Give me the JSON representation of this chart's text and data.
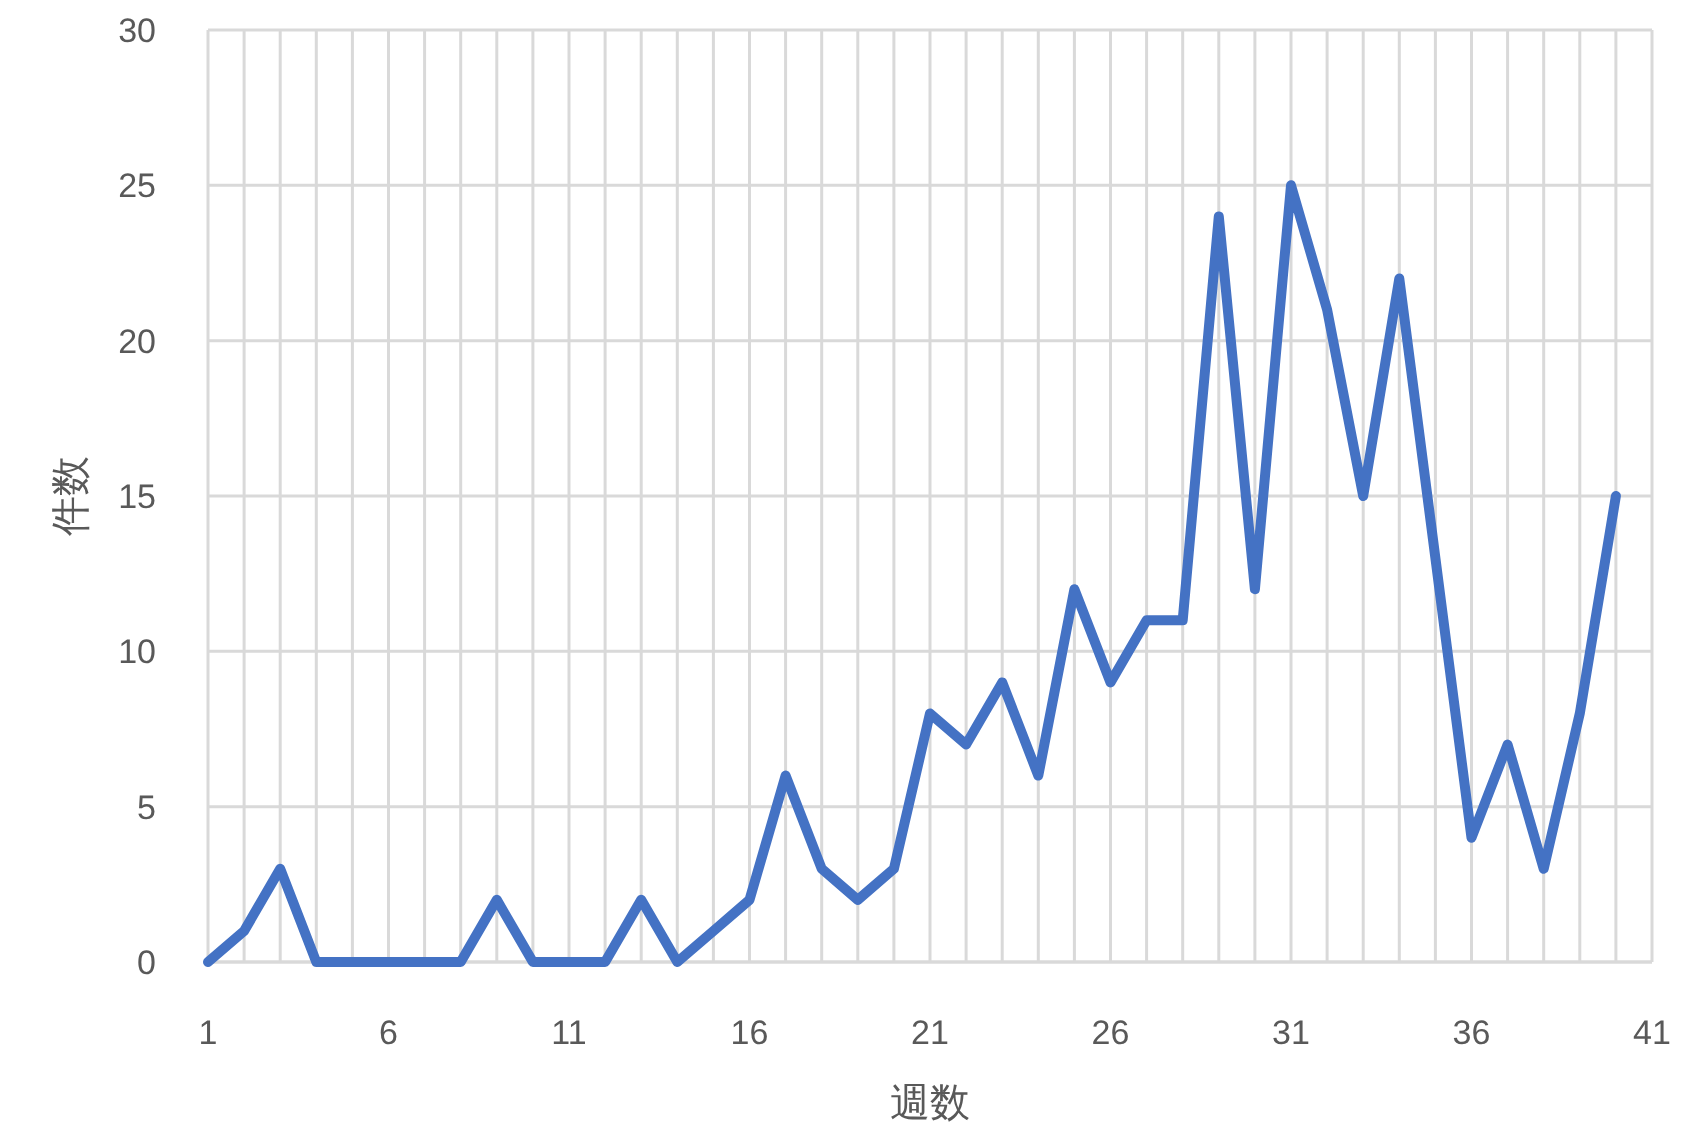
{
  "chart_data": {
    "type": "line",
    "xlabel": "週数",
    "ylabel": "件数",
    "x": [
      1,
      2,
      3,
      4,
      5,
      6,
      7,
      8,
      9,
      10,
      11,
      12,
      13,
      14,
      15,
      16,
      17,
      18,
      19,
      20,
      21,
      22,
      23,
      24,
      25,
      26,
      27,
      28,
      29,
      30,
      31,
      32,
      33,
      34,
      35,
      36,
      37,
      38,
      39,
      40
    ],
    "values": [
      0,
      1,
      3,
      0,
      0,
      0,
      0,
      0,
      2,
      0,
      0,
      0,
      2,
      0,
      1,
      2,
      6,
      3,
      2,
      3,
      8,
      7,
      9,
      6,
      12,
      9,
      11,
      11,
      24,
      12,
      25,
      21,
      15,
      22,
      13,
      4,
      7,
      3,
      8,
      15
    ],
    "color": "#4472c4",
    "xlim": [
      1,
      41
    ],
    "xticks": [
      1,
      {
        "value": 2,
        "label": null
      },
      {
        "value": 3,
        "label": null
      },
      {
        "value": 4,
        "label": null
      },
      {
        "value": 5,
        "label": null
      },
      6,
      {
        "value": 7,
        "label": null
      },
      {
        "value": 8,
        "label": null
      },
      {
        "value": 9,
        "label": null
      },
      {
        "value": 10,
        "label": null
      },
      11,
      {
        "value": 12,
        "label": null
      },
      {
        "value": 13,
        "label": null
      },
      {
        "value": 14,
        "label": null
      },
      {
        "value": 15,
        "label": null
      },
      16,
      {
        "value": 17,
        "label": null
      },
      {
        "value": 18,
        "label": null
      },
      {
        "value": 19,
        "label": null
      },
      {
        "value": 20,
        "label": null
      },
      21,
      {
        "value": 22,
        "label": null
      },
      {
        "value": 23,
        "label": null
      },
      {
        "value": 24,
        "label": null
      },
      {
        "value": 25,
        "label": null
      },
      26,
      {
        "value": 27,
        "label": null
      },
      {
        "value": 28,
        "label": null
      },
      {
        "value": 29,
        "label": null
      },
      {
        "value": 30,
        "label": null
      },
      31,
      {
        "value": 32,
        "label": null
      },
      {
        "value": 33,
        "label": null
      },
      {
        "value": 34,
        "label": null
      },
      {
        "value": 35,
        "label": null
      },
      36,
      {
        "value": 37,
        "label": null
      },
      {
        "value": 38,
        "label": null
      },
      {
        "value": 39,
        "label": null
      },
      {
        "value": 40,
        "label": null
      },
      41
    ],
    "ylim": [
      0,
      30
    ],
    "yticks": [
      0,
      5,
      10,
      15,
      20,
      25,
      30
    ],
    "grid": true
  }
}
